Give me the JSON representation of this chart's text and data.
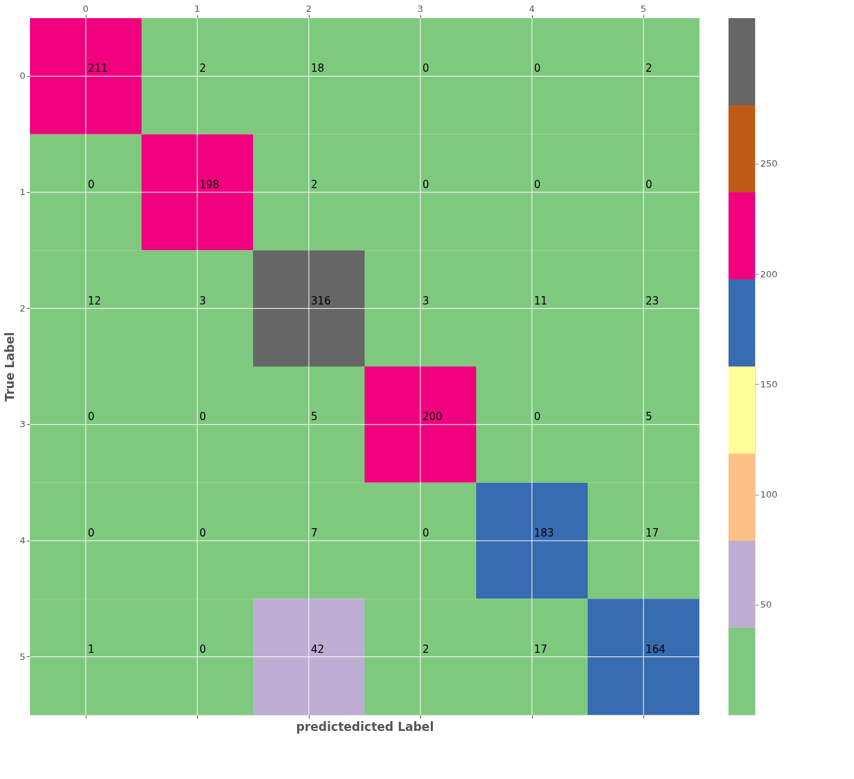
{
  "chart_data": {
    "type": "heatmap",
    "xlabel": "predictedicted Label",
    "ylabel": "True Label",
    "categories": [
      "0",
      "1",
      "2",
      "3",
      "4",
      "5"
    ],
    "y_categories": [
      "0",
      "1",
      "2",
      "3",
      "4",
      "5"
    ],
    "cells": [
      [
        211,
        2,
        18,
        0,
        0,
        2
      ],
      [
        0,
        198,
        2,
        0,
        0,
        0
      ],
      [
        12,
        3,
        316,
        3,
        11,
        23
      ],
      [
        0,
        0,
        5,
        200,
        0,
        5
      ],
      [
        0,
        0,
        7,
        0,
        183,
        17
      ],
      [
        1,
        0,
        42,
        2,
        17,
        164
      ]
    ],
    "data_labels": true,
    "colors": [
      "#7fc97f",
      "#beaed4",
      "#fdc086",
      "#ffff99",
      "#386cb0",
      "#f0027f",
      "#bf5b17",
      "#666666"
    ],
    "clim": [
      0,
      316
    ],
    "cticks": [
      50,
      100,
      150,
      200,
      250
    ],
    "grid": true
  }
}
